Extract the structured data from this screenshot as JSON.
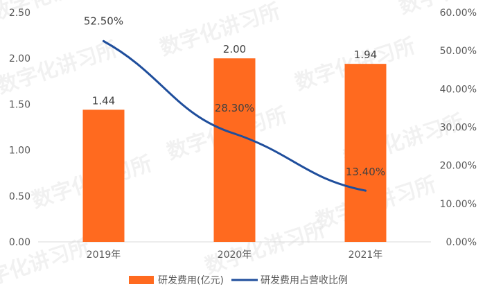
{
  "chart_data": {
    "type": "bar+line",
    "categories": [
      "2019年",
      "2020年",
      "2021年"
    ],
    "series": [
      {
        "name": "研发费用(亿元)",
        "type": "bar",
        "axis": "left",
        "values": [
          1.44,
          2.0,
          1.94
        ],
        "labels": [
          "1.44",
          "2.00",
          "1.94"
        ],
        "color": "#ff6a1f"
      },
      {
        "name": "研发费用占营收比例",
        "type": "line",
        "axis": "right",
        "values": [
          52.5,
          28.3,
          13.4
        ],
        "labels": [
          "52.50%",
          "28.30%",
          "13.40%"
        ],
        "color": "#1f4e9c"
      }
    ],
    "y_left": {
      "ylim": [
        0,
        2.5
      ],
      "ticks": [
        "0.00",
        "0.50",
        "1.00",
        "1.50",
        "2.00",
        "2.50"
      ]
    },
    "y_right": {
      "ylim": [
        0,
        60
      ],
      "ticks": [
        "0.00%",
        "10.00%",
        "20.00%",
        "30.00%",
        "40.00%",
        "50.00%",
        "60.00%"
      ]
    },
    "grid": false,
    "legend_position": "bottom"
  },
  "watermark": "数字化讲习所"
}
